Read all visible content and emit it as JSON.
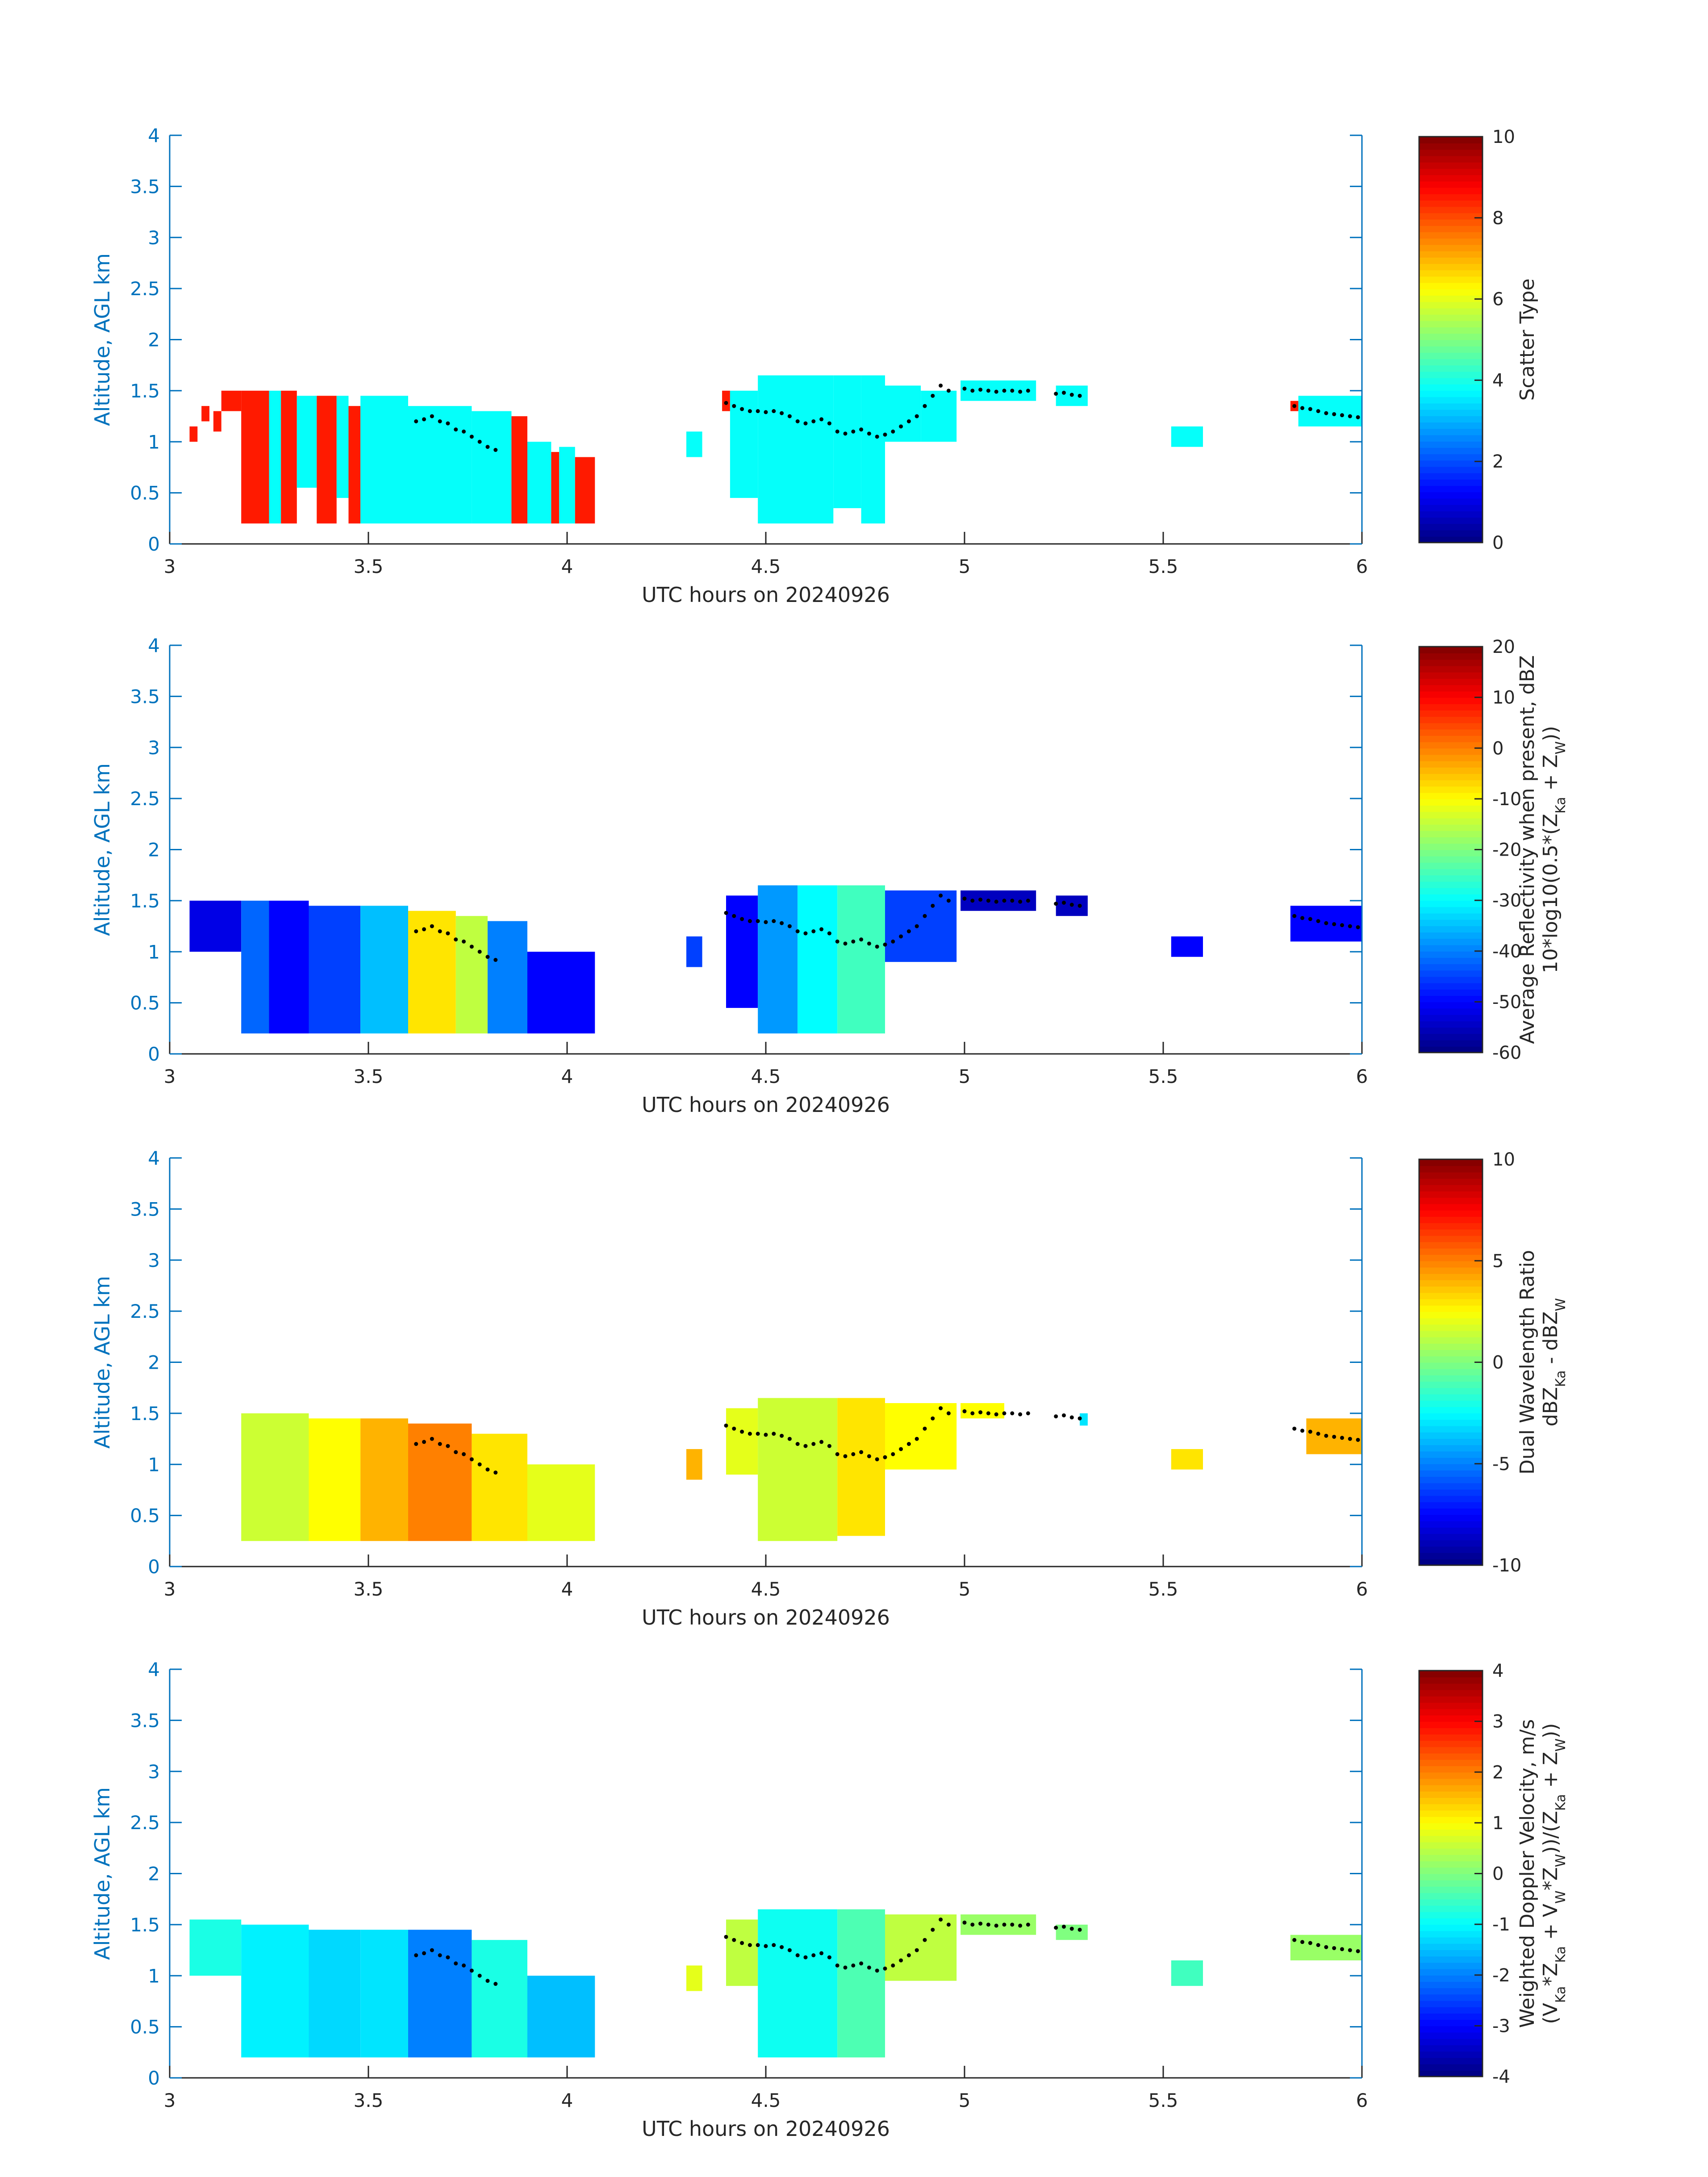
{
  "chart_data": [
    {
      "type": "heatmap",
      "xlabel": "UTC hours on 20240926",
      "ylabel": "Altitude, AGL km",
      "xlim": [
        3,
        6
      ],
      "ylim": [
        0,
        4
      ],
      "xticks": [
        "3",
        "3.5",
        "4",
        "4.5",
        "5",
        "5.5",
        "6"
      ],
      "yticks": [
        "0",
        "0.5",
        "1",
        "1.5",
        "2",
        "2.5",
        "3",
        "3.5",
        "4"
      ],
      "colorbar": {
        "label_lines": [
          "Scatter Type"
        ],
        "range": [
          0,
          10
        ],
        "ticks": [
          "0",
          "2",
          "4",
          "6",
          "8",
          "10"
        ],
        "colormap": "jet"
      },
      "blocks": [
        {
          "x": [
            3.05,
            3.07
          ],
          "y": [
            1.0,
            1.15
          ],
          "value": 8.5
        },
        {
          "x": [
            3.08,
            3.1
          ],
          "y": [
            1.2,
            1.35
          ],
          "value": 8.5
        },
        {
          "x": [
            3.11,
            3.13
          ],
          "y": [
            1.1,
            1.3
          ],
          "value": 8.5
        },
        {
          "x": [
            3.13,
            3.18
          ],
          "y": [
            1.3,
            1.5
          ],
          "value": 8.5
        },
        {
          "x": [
            3.18,
            3.25
          ],
          "y": [
            0.2,
            1.5
          ],
          "value": 8.5
        },
        {
          "x": [
            3.25,
            3.28
          ],
          "y": [
            0.2,
            1.5
          ],
          "value": 3.8
        },
        {
          "x": [
            3.28,
            3.32
          ],
          "y": [
            0.2,
            1.5
          ],
          "value": 8.5
        },
        {
          "x": [
            3.32,
            3.37
          ],
          "y": [
            0.55,
            1.45
          ],
          "value": 3.8
        },
        {
          "x": [
            3.37,
            3.42
          ],
          "y": [
            0.2,
            1.45
          ],
          "value": 8.5
        },
        {
          "x": [
            3.42,
            3.45
          ],
          "y": [
            0.45,
            1.45
          ],
          "value": 3.8
        },
        {
          "x": [
            3.45,
            3.48
          ],
          "y": [
            0.2,
            1.35
          ],
          "value": 8.5
        },
        {
          "x": [
            3.48,
            3.6
          ],
          "y": [
            0.2,
            1.45
          ],
          "value": 3.8
        },
        {
          "x": [
            3.6,
            3.76
          ],
          "y": [
            0.2,
            1.35
          ],
          "value": 3.8
        },
        {
          "x": [
            3.76,
            3.86
          ],
          "y": [
            0.2,
            1.3
          ],
          "value": 3.8
        },
        {
          "x": [
            3.86,
            3.9
          ],
          "y": [
            0.2,
            1.25
          ],
          "value": 8.5
        },
        {
          "x": [
            3.9,
            3.96
          ],
          "y": [
            0.2,
            1.0
          ],
          "value": 3.8
        },
        {
          "x": [
            3.96,
            3.98
          ],
          "y": [
            0.2,
            0.9
          ],
          "value": 8.5
        },
        {
          "x": [
            3.98,
            4.02
          ],
          "y": [
            0.2,
            0.95
          ],
          "value": 3.8
        },
        {
          "x": [
            4.02,
            4.07
          ],
          "y": [
            0.2,
            0.85
          ],
          "value": 8.5
        },
        {
          "x": [
            4.3,
            4.34
          ],
          "y": [
            0.85,
            1.1
          ],
          "value": 3.8
        },
        {
          "x": [
            4.39,
            4.41
          ],
          "y": [
            1.3,
            1.5
          ],
          "value": 8.5
        },
        {
          "x": [
            4.41,
            4.48
          ],
          "y": [
            0.45,
            1.5
          ],
          "value": 3.8
        },
        {
          "x": [
            4.48,
            4.67
          ],
          "y": [
            0.2,
            1.65
          ],
          "value": 3.8
        },
        {
          "x": [
            4.67,
            4.74
          ],
          "y": [
            0.35,
            1.65
          ],
          "value": 3.8
        },
        {
          "x": [
            4.74,
            4.8
          ],
          "y": [
            0.2,
            1.65
          ],
          "value": 3.8
        },
        {
          "x": [
            4.8,
            4.89
          ],
          "y": [
            1.0,
            1.55
          ],
          "value": 3.8
        },
        {
          "x": [
            4.89,
            4.98
          ],
          "y": [
            1.0,
            1.5
          ],
          "value": 3.8
        },
        {
          "x": [
            4.99,
            5.18
          ],
          "y": [
            1.4,
            1.6
          ],
          "value": 3.8
        },
        {
          "x": [
            5.23,
            5.31
          ],
          "y": [
            1.35,
            1.55
          ],
          "value": 3.8
        },
        {
          "x": [
            5.52,
            5.6
          ],
          "y": [
            0.95,
            1.15
          ],
          "value": 3.8
        },
        {
          "x": [
            5.82,
            5.84
          ],
          "y": [
            1.3,
            1.4
          ],
          "value": 8.5
        },
        {
          "x": [
            5.84,
            6.0
          ],
          "y": [
            1.15,
            1.45
          ],
          "value": 3.8
        }
      ]
    },
    {
      "type": "heatmap",
      "xlabel": "UTC hours on 20240926",
      "ylabel": "Altitude, AGL km",
      "xlim": [
        3,
        6
      ],
      "ylim": [
        0,
        4
      ],
      "xticks": [
        "3",
        "3.5",
        "4",
        "4.5",
        "5",
        "5.5",
        "6"
      ],
      "yticks": [
        "0",
        "0.5",
        "1",
        "1.5",
        "2",
        "2.5",
        "3",
        "3.5",
        "4"
      ],
      "colorbar": {
        "label_lines": [
          "Average Reflectivity when present, dBZ",
          "10*log10(0.5*(Z_Ka + Z_W))"
        ],
        "range": [
          -60,
          20
        ],
        "ticks": [
          "-60",
          "-50",
          "-40",
          "-30",
          "-20",
          "-10",
          "0",
          "10",
          "20"
        ],
        "colormap": "jet"
      },
      "blocks": [
        {
          "x": [
            3.05,
            3.18
          ],
          "y": [
            1.0,
            1.5
          ],
          "value": -52
        },
        {
          "x": [
            3.18,
            3.25
          ],
          "y": [
            0.2,
            1.5
          ],
          "value": -42
        },
        {
          "x": [
            3.25,
            3.35
          ],
          "y": [
            0.2,
            1.5
          ],
          "value": -50
        },
        {
          "x": [
            3.35,
            3.48
          ],
          "y": [
            0.2,
            1.45
          ],
          "value": -45
        },
        {
          "x": [
            3.48,
            3.6
          ],
          "y": [
            0.2,
            1.45
          ],
          "value": -35
        },
        {
          "x": [
            3.6,
            3.72
          ],
          "y": [
            0.2,
            1.4
          ],
          "value": -8
        },
        {
          "x": [
            3.72,
            3.8
          ],
          "y": [
            0.2,
            1.35
          ],
          "value": -15
        },
        {
          "x": [
            3.8,
            3.9
          ],
          "y": [
            0.2,
            1.3
          ],
          "value": -40
        },
        {
          "x": [
            3.9,
            4.07
          ],
          "y": [
            0.2,
            1.0
          ],
          "value": -50
        },
        {
          "x": [
            4.3,
            4.34
          ],
          "y": [
            0.85,
            1.15
          ],
          "value": -45
        },
        {
          "x": [
            4.4,
            4.48
          ],
          "y": [
            0.45,
            1.55
          ],
          "value": -50
        },
        {
          "x": [
            4.48,
            4.58
          ],
          "y": [
            0.2,
            1.65
          ],
          "value": -38
        },
        {
          "x": [
            4.58,
            4.68
          ],
          "y": [
            0.2,
            1.65
          ],
          "value": -30
        },
        {
          "x": [
            4.68,
            4.8
          ],
          "y": [
            0.2,
            1.65
          ],
          "value": -25
        },
        {
          "x": [
            4.8,
            4.98
          ],
          "y": [
            0.9,
            1.6
          ],
          "value": -45
        },
        {
          "x": [
            4.99,
            5.18
          ],
          "y": [
            1.4,
            1.6
          ],
          "value": -55
        },
        {
          "x": [
            5.23,
            5.31
          ],
          "y": [
            1.35,
            1.55
          ],
          "value": -55
        },
        {
          "x": [
            5.52,
            5.6
          ],
          "y": [
            0.95,
            1.15
          ],
          "value": -50
        },
        {
          "x": [
            5.82,
            6.0
          ],
          "y": [
            1.1,
            1.45
          ],
          "value": -50
        }
      ]
    },
    {
      "type": "heatmap",
      "xlabel": "UTC hours on 20240926",
      "ylabel": "Altitude, AGL km",
      "xlim": [
        3,
        6
      ],
      "ylim": [
        0,
        4
      ],
      "xticks": [
        "3",
        "3.5",
        "4",
        "4.5",
        "5",
        "5.5",
        "6"
      ],
      "yticks": [
        "0",
        "0.5",
        "1",
        "1.5",
        "2",
        "2.5",
        "3",
        "3.5",
        "4"
      ],
      "colorbar": {
        "label_lines": [
          "Dual Wavelength Ratio",
          "dBZ_Ka - dBZ_W"
        ],
        "range": [
          -10,
          10
        ],
        "ticks": [
          "-10",
          "-5",
          "0",
          "5",
          "10"
        ],
        "colormap": "jet"
      },
      "blocks": [
        {
          "x": [
            3.18,
            3.35
          ],
          "y": [
            0.25,
            1.5
          ],
          "value": 1.5
        },
        {
          "x": [
            3.35,
            3.48
          ],
          "y": [
            0.25,
            1.45
          ],
          "value": 2.5
        },
        {
          "x": [
            3.48,
            3.6
          ],
          "y": [
            0.25,
            1.45
          ],
          "value": 4.0
        },
        {
          "x": [
            3.6,
            3.76
          ],
          "y": [
            0.25,
            1.4
          ],
          "value": 5.0
        },
        {
          "x": [
            3.76,
            3.9
          ],
          "y": [
            0.25,
            1.3
          ],
          "value": 3.0
        },
        {
          "x": [
            3.9,
            4.07
          ],
          "y": [
            0.25,
            1.0
          ],
          "value": 2.0
        },
        {
          "x": [
            4.3,
            4.34
          ],
          "y": [
            0.85,
            1.15
          ],
          "value": 4.0
        },
        {
          "x": [
            4.4,
            4.48
          ],
          "y": [
            0.9,
            1.55
          ],
          "value": 2.0
        },
        {
          "x": [
            4.48,
            4.68
          ],
          "y": [
            0.25,
            1.65
          ],
          "value": 1.5
        },
        {
          "x": [
            4.68,
            4.8
          ],
          "y": [
            0.3,
            1.65
          ],
          "value": 3.0
        },
        {
          "x": [
            4.8,
            4.98
          ],
          "y": [
            0.95,
            1.6
          ],
          "value": 2.5
        },
        {
          "x": [
            4.99,
            5.1
          ],
          "y": [
            1.45,
            1.6
          ],
          "value": 2.5
        },
        {
          "x": [
            5.29,
            5.31
          ],
          "y": [
            1.38,
            1.5
          ],
          "value": -3
        },
        {
          "x": [
            5.52,
            5.6
          ],
          "y": [
            0.95,
            1.15
          ],
          "value": 3.0
        },
        {
          "x": [
            5.86,
            6.0
          ],
          "y": [
            1.1,
            1.45
          ],
          "value": 4.0
        }
      ]
    },
    {
      "type": "heatmap",
      "xlabel": "UTC hours on 20240926",
      "ylabel": "Altitude, AGL km",
      "xlim": [
        3,
        6
      ],
      "ylim": [
        0,
        4
      ],
      "xticks": [
        "3",
        "3.5",
        "4",
        "4.5",
        "5",
        "5.5",
        "6"
      ],
      "yticks": [
        "0",
        "0.5",
        "1",
        "1.5",
        "2",
        "2.5",
        "3",
        "3.5",
        "4"
      ],
      "colorbar": {
        "label_lines": [
          "Weighted Doppler Velocity, m/s",
          "(V_Ka*Z_Ka + V_W*Z_W))/(Z_Ka + Z_W))"
        ],
        "range": [
          -4,
          4
        ],
        "ticks": [
          "-4",
          "-3",
          "-2",
          "-1",
          "0",
          "1",
          "2",
          "3",
          "4"
        ],
        "colormap": "jet"
      },
      "blocks": [
        {
          "x": [
            3.05,
            3.18
          ],
          "y": [
            1.0,
            1.55
          ],
          "value": -0.8
        },
        {
          "x": [
            3.18,
            3.35
          ],
          "y": [
            0.2,
            1.5
          ],
          "value": -1.1
        },
        {
          "x": [
            3.35,
            3.48
          ],
          "y": [
            0.2,
            1.45
          ],
          "value": -1.3
        },
        {
          "x": [
            3.48,
            3.6
          ],
          "y": [
            0.2,
            1.45
          ],
          "value": -1.2
        },
        {
          "x": [
            3.6,
            3.76
          ],
          "y": [
            0.2,
            1.45
          ],
          "value": -2.0
        },
        {
          "x": [
            3.76,
            3.9
          ],
          "y": [
            0.2,
            1.35
          ],
          "value": -0.8
        },
        {
          "x": [
            3.9,
            4.07
          ],
          "y": [
            0.2,
            1.0
          ],
          "value": -1.5
        },
        {
          "x": [
            4.3,
            4.34
          ],
          "y": [
            0.85,
            1.1
          ],
          "value": 0.8
        },
        {
          "x": [
            4.4,
            4.48
          ],
          "y": [
            0.9,
            1.55
          ],
          "value": 0.5
        },
        {
          "x": [
            4.48,
            4.68
          ],
          "y": [
            0.2,
            1.65
          ],
          "value": -0.9
        },
        {
          "x": [
            4.68,
            4.8
          ],
          "y": [
            0.2,
            1.65
          ],
          "value": -0.4
        },
        {
          "x": [
            4.8,
            4.98
          ],
          "y": [
            0.95,
            1.6
          ],
          "value": 0.5
        },
        {
          "x": [
            4.99,
            5.18
          ],
          "y": [
            1.4,
            1.6
          ],
          "value": 0.2
        },
        {
          "x": [
            5.23,
            5.31
          ],
          "y": [
            1.35,
            1.5
          ],
          "value": 0.0
        },
        {
          "x": [
            5.52,
            5.6
          ],
          "y": [
            0.9,
            1.15
          ],
          "value": -0.5
        },
        {
          "x": [
            5.82,
            6.0
          ],
          "y": [
            1.15,
            1.4
          ],
          "value": 0.2
        }
      ]
    }
  ],
  "overlay_dots": {
    "color": "#000000",
    "x": [
      3.62,
      3.64,
      3.66,
      3.68,
      3.7,
      3.72,
      3.74,
      3.76,
      3.78,
      3.8,
      3.82,
      4.4,
      4.42,
      4.44,
      4.46,
      4.48,
      4.5,
      4.52,
      4.54,
      4.56,
      4.58,
      4.6,
      4.62,
      4.64,
      4.66,
      4.68,
      4.7,
      4.72,
      4.74,
      4.76,
      4.78,
      4.8,
      4.82,
      4.84,
      4.86,
      4.88,
      4.9,
      4.92,
      4.94,
      4.96,
      5.0,
      5.02,
      5.04,
      5.06,
      5.08,
      5.1,
      5.12,
      5.14,
      5.16,
      5.23,
      5.25,
      5.27,
      5.29,
      5.83,
      5.85,
      5.87,
      5.89,
      5.91,
      5.93,
      5.95,
      5.97,
      5.99
    ],
    "y": [
      1.2,
      1.22,
      1.25,
      1.2,
      1.18,
      1.12,
      1.1,
      1.05,
      1.0,
      0.95,
      0.92,
      1.38,
      1.35,
      1.32,
      1.3,
      1.3,
      1.29,
      1.3,
      1.28,
      1.25,
      1.2,
      1.18,
      1.2,
      1.22,
      1.18,
      1.1,
      1.08,
      1.1,
      1.12,
      1.08,
      1.05,
      1.07,
      1.1,
      1.15,
      1.2,
      1.25,
      1.35,
      1.45,
      1.55,
      1.5,
      1.52,
      1.5,
      1.51,
      1.5,
      1.49,
      1.5,
      1.5,
      1.49,
      1.5,
      1.47,
      1.48,
      1.46,
      1.45,
      1.35,
      1.33,
      1.32,
      1.3,
      1.28,
      1.27,
      1.26,
      1.25,
      1.24
    ]
  }
}
